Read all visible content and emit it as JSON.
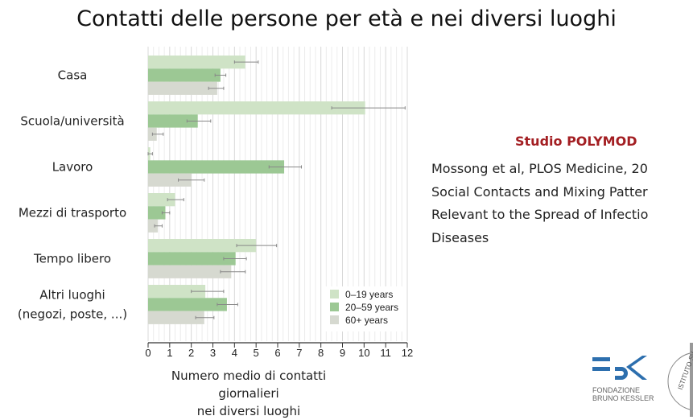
{
  "title": "Contatti delle persone per età e nei diversi luoghi",
  "chart_data": {
    "type": "bar",
    "orientation": "horizontal",
    "categories": [
      "Casa",
      "Scuola/università",
      "Lavoro",
      "Mezzi di trasporto",
      "Tempo libero",
      "Altri luoghi (negozi, poste, ...)"
    ],
    "category_lines": [
      [
        "Casa"
      ],
      [
        "Scuola/università"
      ],
      [
        "Lavoro"
      ],
      [
        "Mezzi di trasporto"
      ],
      [
        "Tempo libero"
      ],
      [
        "Altri luoghi",
        "(negozi, poste, ...)"
      ]
    ],
    "series": [
      {
        "name": "0–19 years",
        "color": "#cfe3c6",
        "values": [
          4.5,
          10.05,
          0.1,
          1.25,
          5.0,
          2.65
        ],
        "err_low": [
          4.0,
          8.5,
          0.0,
          0.9,
          4.1,
          2.0
        ],
        "err_high": [
          5.1,
          11.9,
          0.2,
          1.65,
          5.95,
          3.5
        ]
      },
      {
        "name": "20–59 years",
        "color": "#9cc894",
        "values": [
          3.35,
          2.3,
          6.3,
          0.8,
          4.05,
          3.65
        ],
        "err_low": [
          3.1,
          1.8,
          5.6,
          0.65,
          3.5,
          3.2
        ],
        "err_high": [
          3.6,
          2.9,
          7.1,
          1.0,
          4.55,
          4.15
        ]
      },
      {
        "name": "60+ years",
        "color": "#d6d9d0",
        "values": [
          3.2,
          0.4,
          2.0,
          0.45,
          3.85,
          2.6
        ],
        "err_low": [
          2.8,
          0.2,
          1.4,
          0.3,
          3.35,
          2.2
        ],
        "err_high": [
          3.5,
          0.7,
          2.6,
          0.65,
          4.5,
          3.05
        ]
      }
    ],
    "xlim": [
      0,
      12
    ],
    "xticks": [
      "0",
      "1",
      "2",
      "3",
      "4",
      "5",
      "6",
      "7",
      "8",
      "9",
      "10",
      "11",
      "12"
    ],
    "xlabel": [
      "Numero medio di contatti giornalieri",
      "nei diversi luoghi"
    ],
    "grid": true,
    "legend_position": "bottom-right"
  },
  "sidebar": {
    "study": "Studio POLYMOD",
    "reference_lines": [
      "Mossong et al, PLOS Medicine, 20",
      "Social Contacts and Mixing Patter",
      "Relevant to the Spread of Infectio",
      "Diseases"
    ]
  },
  "logo": {
    "text": [
      "FONDAZIONE",
      "BRUNO KESSLER"
    ],
    "seal_text": "ISTITUTO SV"
  }
}
